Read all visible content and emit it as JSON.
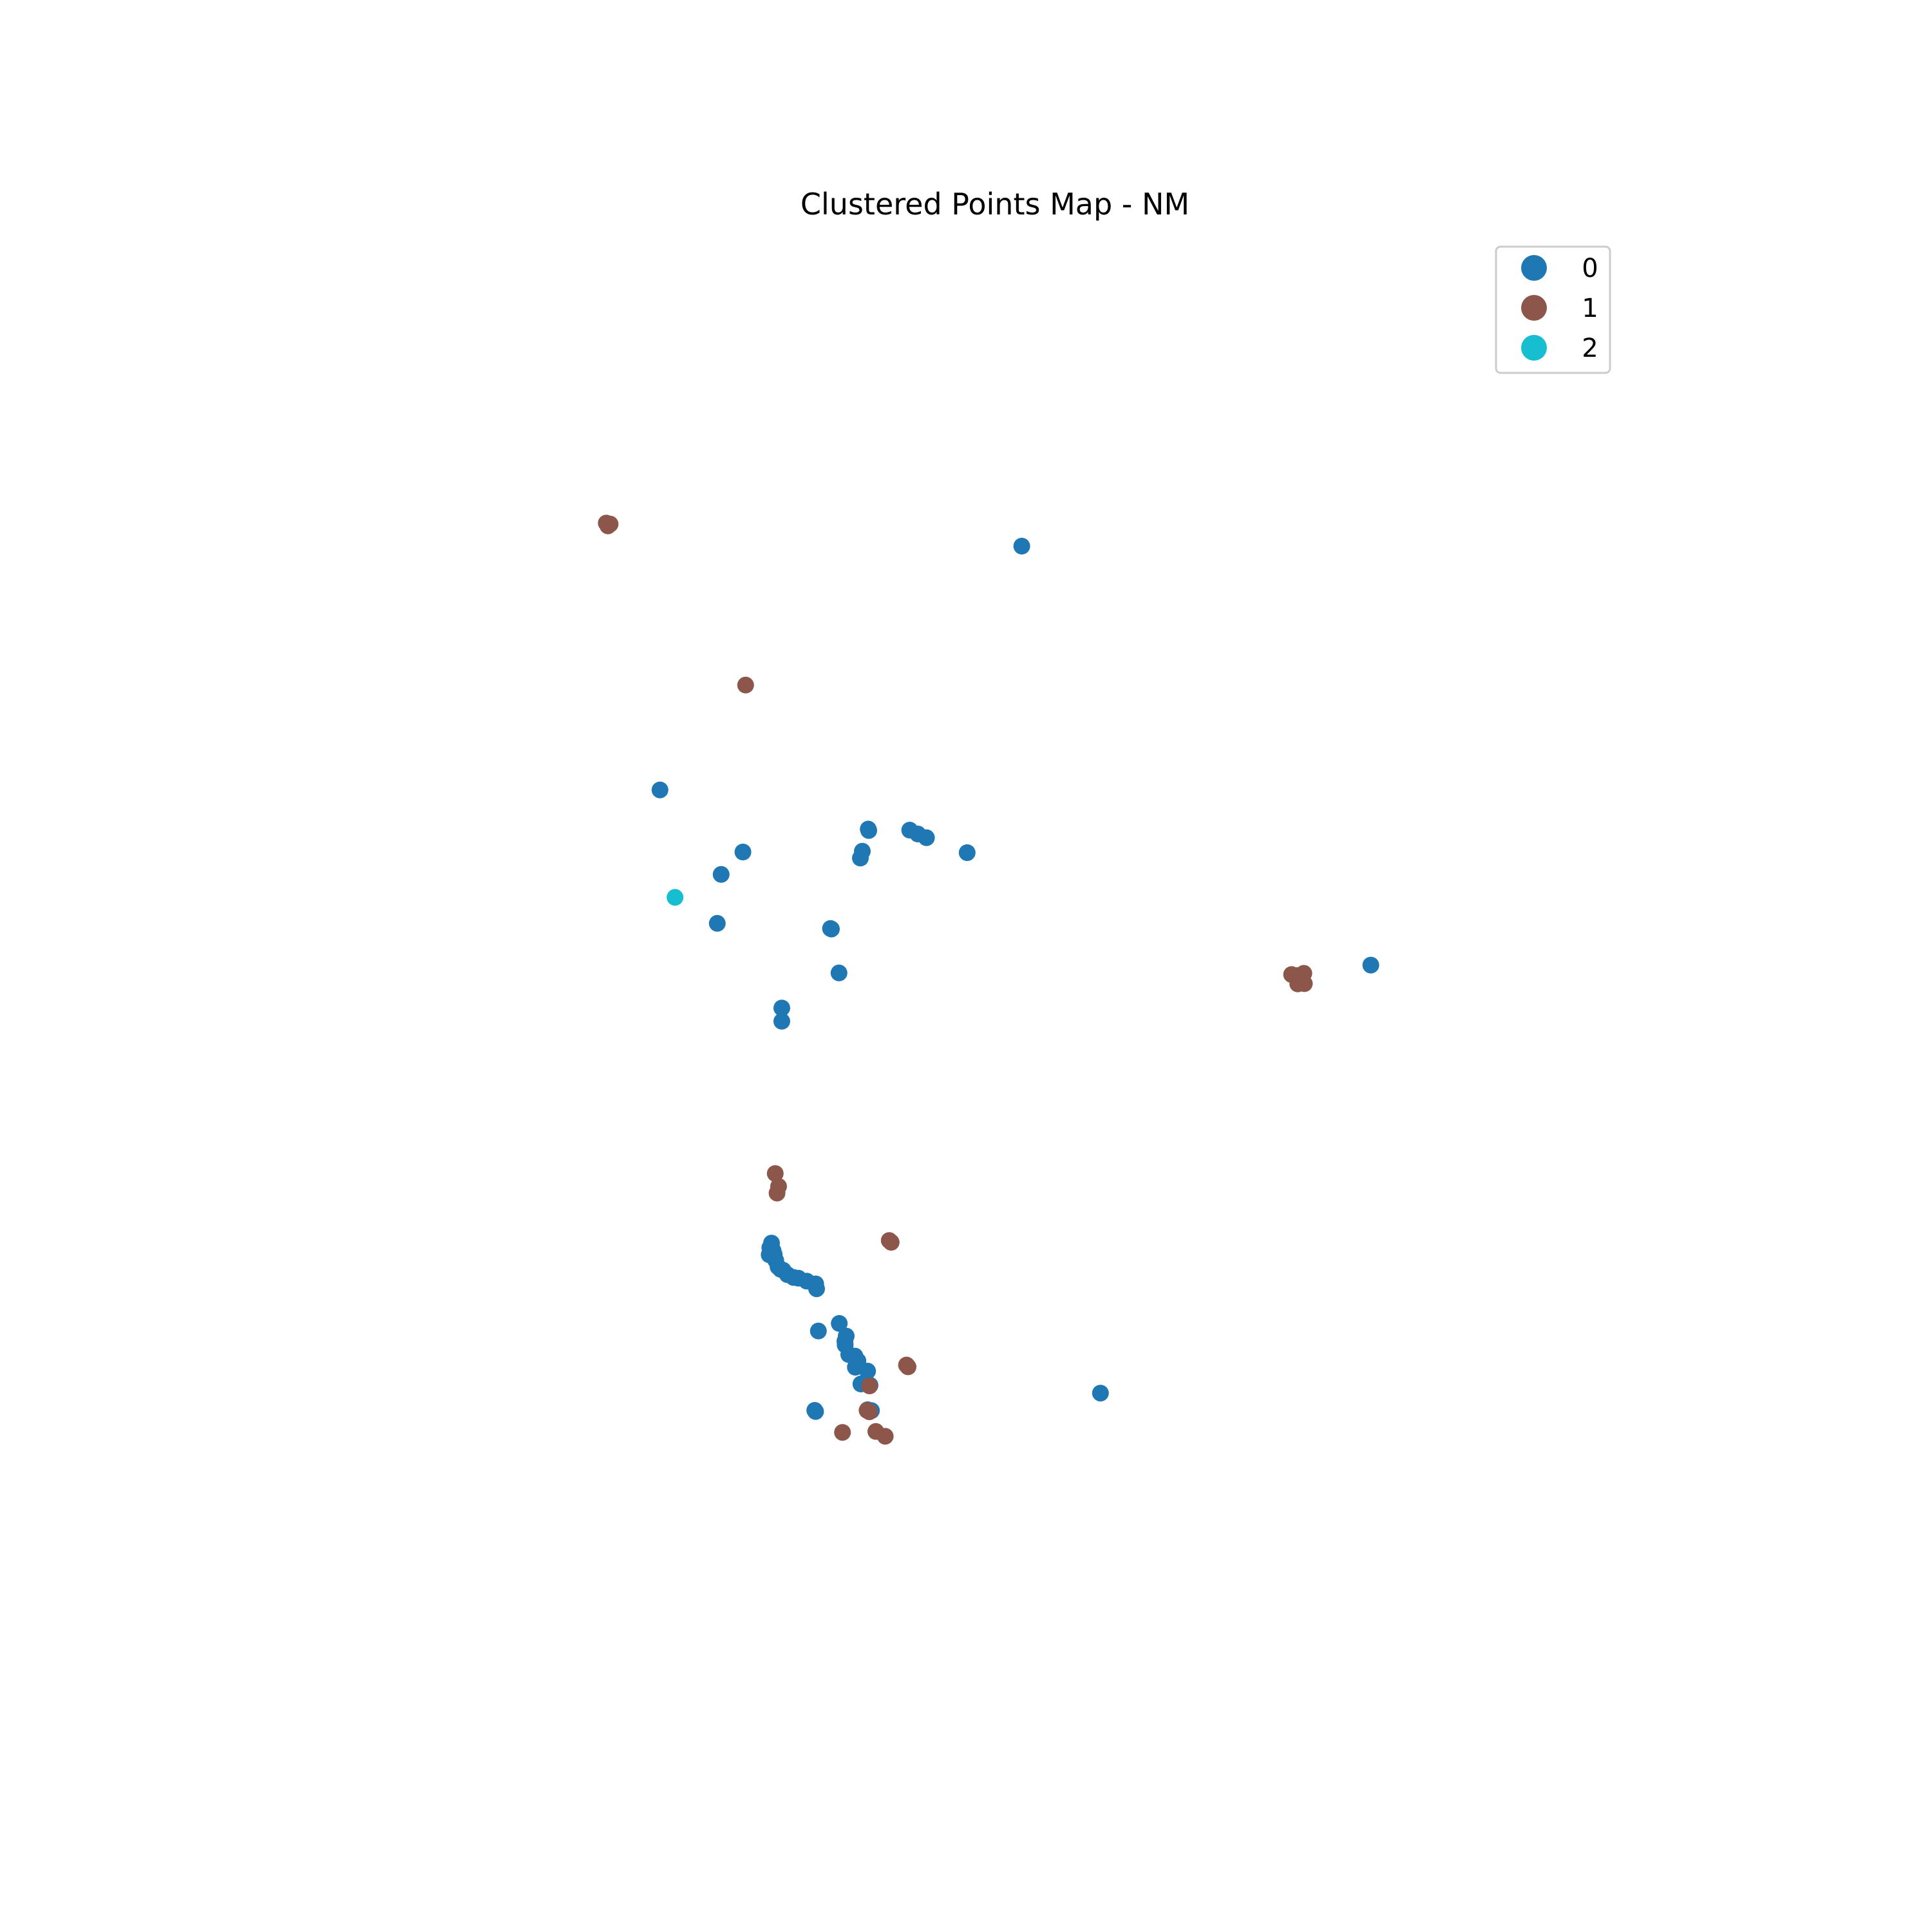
{
  "chart_data": {
    "type": "scatter",
    "title": "Clustered Points Map - NM",
    "xlabel": "",
    "ylabel": "",
    "axes_visible": false,
    "grid": false,
    "legend_placement": "top-right",
    "xlim": [
      0,
      1000
    ],
    "ylim": [
      0,
      1000
    ],
    "series": [
      {
        "name": "0",
        "color": "#1f77b4",
        "points": [
          [
            543.3,
            826.0
          ],
          [
            262.4,
            636.7
          ],
          [
            326.8,
            588.5
          ],
          [
            309.9,
            571.1
          ],
          [
            306.9,
            533.1
          ],
          [
            424.1,
            606.3
          ],
          [
            424.5,
            605.2
          ],
          [
            456.3,
            605.5
          ],
          [
            462.6,
            602.5
          ],
          [
            469.3,
            599.6
          ],
          [
            419.5,
            589.1
          ],
          [
            418.0,
            583.8
          ],
          [
            500.9,
            588.0
          ],
          [
            395.5,
            528.7
          ],
          [
            394.8,
            529.1
          ],
          [
            401.4,
            494.6
          ],
          [
            357.0,
            467.4
          ],
          [
            357.0,
            457.1
          ],
          [
            814.3,
            500.7
          ],
          [
            349.0,
            284.9
          ],
          [
            347.7,
            281.3
          ],
          [
            350.2,
            279.1
          ],
          [
            347.2,
            275.8
          ],
          [
            351.1,
            276.1
          ],
          [
            352.3,
            271.4
          ],
          [
            354.1,
            266.4
          ],
          [
            356.1,
            264.5
          ],
          [
            358.0,
            263.8
          ],
          [
            361.3,
            260.4
          ],
          [
            366.1,
            258.2
          ],
          [
            369.9,
            257.6
          ],
          [
            376.4,
            255.3
          ],
          [
            383.3,
            253.2
          ],
          [
            384.0,
            249.4
          ],
          [
            385.4,
            216.6
          ],
          [
            401.6,
            222.5
          ],
          [
            407.0,
            212.7
          ],
          [
            406.0,
            208.7
          ],
          [
            406.2,
            205.8
          ],
          [
            409.0,
            198.3
          ],
          [
            413.8,
            197.1
          ],
          [
            416.1,
            193.4
          ],
          [
            414.1,
            188.5
          ],
          [
            423.6,
            185.5
          ],
          [
            418.4,
            175.5
          ],
          [
            425.5,
            174.5
          ],
          [
            426.6,
            154.8
          ],
          [
            423.6,
            155.5
          ],
          [
            382.6,
            155.0
          ],
          [
            383.2,
            154.1
          ],
          [
            604.4,
            168.4
          ]
        ]
      },
      {
        "name": "1",
        "color": "#8c564b",
        "points": [
          [
            220.7,
            843.9
          ],
          [
            222.0,
            841.7
          ],
          [
            223.7,
            843.1
          ],
          [
            328.9,
            718.1
          ],
          [
            752.8,
            493.4
          ],
          [
            757.5,
            492.6
          ],
          [
            762.3,
            494.3
          ],
          [
            757.6,
            486.1
          ],
          [
            762.7,
            486.3
          ],
          [
            759.1,
            489.0
          ],
          [
            351.9,
            338.9
          ],
          [
            354.5,
            328.9
          ],
          [
            353.3,
            323.7
          ],
          [
            440.4,
            286.9
          ],
          [
            441.9,
            285.5
          ],
          [
            453.8,
            190.2
          ],
          [
            455.0,
            188.8
          ],
          [
            425.1,
            174.0
          ],
          [
            423.2,
            155.0
          ],
          [
            425.0,
            153.9
          ],
          [
            404.1,
            137.9
          ],
          [
            430.0,
            138.6
          ],
          [
            437.3,
            134.9
          ]
        ]
      },
      {
        "name": "2",
        "color": "#17becf",
        "points": [
          [
            274.1,
            553.3
          ]
        ]
      }
    ]
  }
}
